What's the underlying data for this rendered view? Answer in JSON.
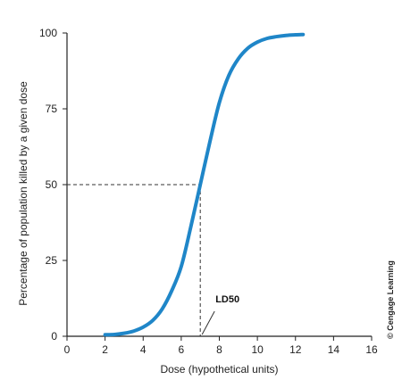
{
  "chart_data": {
    "type": "line",
    "xlabel": "Dose (hypothetical units)",
    "ylabel": "Percentage of population killed by a given dose",
    "xlim": [
      0,
      16
    ],
    "ylim": [
      0,
      100
    ],
    "x_ticks": [
      0,
      2,
      4,
      6,
      8,
      10,
      12,
      14,
      16
    ],
    "y_ticks": [
      0,
      25,
      50,
      75,
      100
    ],
    "grid": false,
    "series": [
      {
        "color": "#1f86c8",
        "points": [
          [
            2.0,
            0.5
          ],
          [
            2.5,
            0.6
          ],
          [
            3.0,
            1.0
          ],
          [
            3.5,
            1.7
          ],
          [
            4.0,
            3.0
          ],
          [
            4.5,
            5.2
          ],
          [
            5.0,
            9.0
          ],
          [
            5.5,
            15.0
          ],
          [
            6.0,
            23.0
          ],
          [
            6.5,
            36.0
          ],
          [
            7.0,
            50.0
          ],
          [
            7.5,
            64.0
          ],
          [
            8.0,
            77.0
          ],
          [
            8.5,
            86.0
          ],
          [
            9.0,
            91.5
          ],
          [
            9.5,
            95.0
          ],
          [
            10.0,
            97.0
          ],
          [
            10.5,
            98.2
          ],
          [
            11.0,
            98.8
          ],
          [
            11.5,
            99.2
          ],
          [
            12.0,
            99.4
          ],
          [
            12.4,
            99.5
          ]
        ]
      }
    ],
    "reference_point": {
      "x": 7,
      "y": 50
    },
    "annotations": [
      {
        "text": "LD50",
        "points_to": {
          "x": 7,
          "y": 0
        }
      }
    ],
    "credit": "© Cengage Learning"
  }
}
